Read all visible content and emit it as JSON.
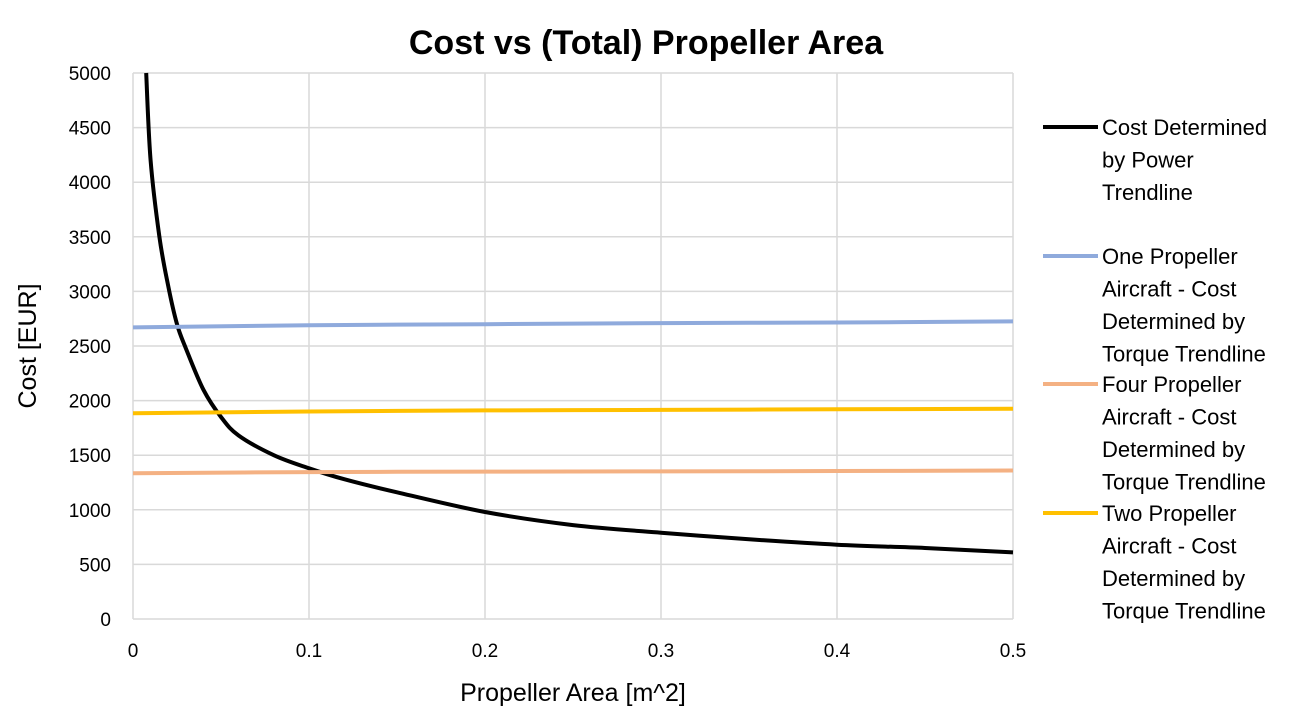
{
  "chart_data": {
    "type": "line",
    "title": "Cost vs (Total) Propeller Area",
    "xlabel": "Propeller Area [m^2]",
    "ylabel": "Cost [EUR]",
    "xlim": [
      0,
      0.5
    ],
    "ylim": [
      0,
      5000
    ],
    "x_ticks": [
      "0",
      "0.1",
      "0.2",
      "0.3",
      "0.4",
      "0.5"
    ],
    "y_ticks": [
      "0",
      "500",
      "1000",
      "1500",
      "2000",
      "2500",
      "3000",
      "3500",
      "4000",
      "4500",
      "5000"
    ],
    "grid": true,
    "legend_position": "right",
    "series": [
      {
        "name": "Cost Determined by Power Trendline",
        "legend_lines": [
          "Cost Determined",
          "by Power",
          "Trendline"
        ],
        "color": "#000000",
        "x": [
          0.0075,
          0.01,
          0.015,
          0.02,
          0.025,
          0.03,
          0.04,
          0.05,
          0.06,
          0.08,
          0.1,
          0.12,
          0.15,
          0.2,
          0.25,
          0.3,
          0.35,
          0.4,
          0.45,
          0.5
        ],
        "y": [
          5000,
          4200,
          3500,
          3050,
          2700,
          2480,
          2100,
          1850,
          1680,
          1500,
          1380,
          1280,
          1160,
          980,
          860,
          790,
          730,
          680,
          650,
          610
        ]
      },
      {
        "name": "One Propeller Aircraft - Cost Determined by Torque Trendline",
        "legend_lines": [
          "One Propeller",
          "Aircraft - Cost",
          "Determined by",
          "Torque Trendline"
        ],
        "color": "#8faadc",
        "x": [
          0,
          0.1,
          0.2,
          0.3,
          0.4,
          0.5
        ],
        "y": [
          2670,
          2690,
          2700,
          2710,
          2715,
          2725
        ]
      },
      {
        "name": "Four Propeller Aircraft - Cost Determined by Torque Trendline",
        "legend_lines": [
          "Four Propeller",
          "Aircraft - Cost",
          "Determined by",
          "Torque Trendline"
        ],
        "color": "#f4b183",
        "x": [
          0,
          0.1,
          0.2,
          0.3,
          0.4,
          0.5
        ],
        "y": [
          1335,
          1345,
          1350,
          1352,
          1355,
          1360
        ]
      },
      {
        "name": "Two Propeller Aircraft - Cost Determined by Torque Trendline",
        "legend_lines": [
          "Two Propeller",
          "Aircraft - Cost",
          "Determined by",
          "Torque Trendline"
        ],
        "color": "#ffc000",
        "x": [
          0,
          0.1,
          0.2,
          0.3,
          0.4,
          0.5
        ],
        "y": [
          1885,
          1900,
          1910,
          1915,
          1920,
          1925
        ]
      }
    ]
  }
}
